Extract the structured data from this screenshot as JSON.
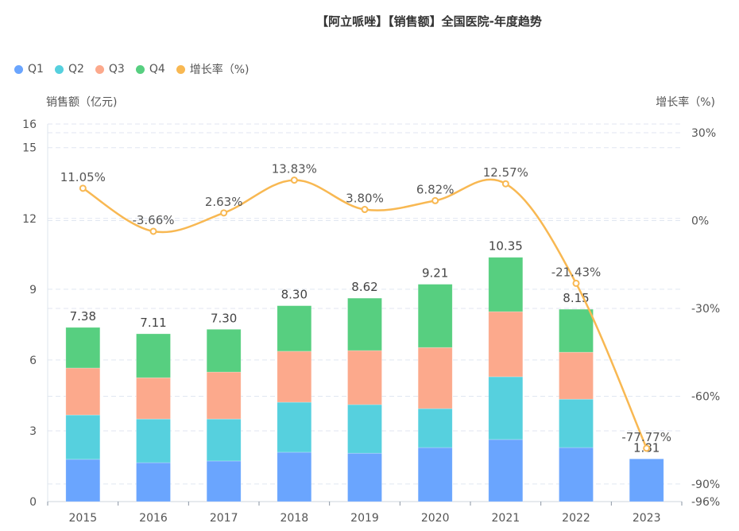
{
  "title": "【阿立哌唑】【销售额】全国医院-年度趋势",
  "legend": [
    {
      "label": "Q1",
      "color": "#6aa5fe"
    },
    {
      "label": "Q2",
      "color": "#56d0de"
    },
    {
      "label": "Q3",
      "color": "#fca98c"
    },
    {
      "label": "Q4",
      "color": "#57cf80"
    },
    {
      "label": "增长率（%)",
      "color": "#f8b852"
    }
  ],
  "chart_data": {
    "type": "bar",
    "stacked": true,
    "title": "【阿立哌唑】【销售额】全国医院-年度趋势",
    "categories": [
      "2015",
      "2016",
      "2017",
      "2018",
      "2019",
      "2020",
      "2021",
      "2022",
      "2023"
    ],
    "ylabel": "销售额（亿元)",
    "y2label": "增长率（%)",
    "ylim": [
      0,
      16
    ],
    "yticks": [
      0,
      3,
      6,
      9,
      12,
      15,
      16
    ],
    "y2lim": [
      -96,
      33
    ],
    "y2ticks": [
      {
        "value": 30,
        "label": "30%"
      },
      {
        "value": 0,
        "label": "0%"
      },
      {
        "value": -30,
        "label": "-30%"
      },
      {
        "value": -60,
        "label": "-60%"
      },
      {
        "value": -90,
        "label": "-90%"
      },
      {
        "value": -96,
        "label": "-96%"
      }
    ],
    "grid": true,
    "legend_position": "top-left",
    "series": [
      {
        "name": "Q1",
        "type": "bar",
        "color": "#6aa5fe",
        "values": [
          1.79,
          1.65,
          1.72,
          2.09,
          2.05,
          2.29,
          2.63,
          2.29,
          1.81
        ]
      },
      {
        "name": "Q2",
        "type": "bar",
        "color": "#56d0de",
        "values": [
          1.88,
          1.85,
          1.78,
          2.12,
          2.06,
          1.65,
          2.66,
          2.05,
          null
        ]
      },
      {
        "name": "Q3",
        "type": "bar",
        "color": "#fca98c",
        "values": [
          1.99,
          1.75,
          1.99,
          2.16,
          2.29,
          2.59,
          2.76,
          1.99,
          null
        ]
      },
      {
        "name": "Q4",
        "type": "bar",
        "color": "#57cf80",
        "values": [
          1.72,
          1.86,
          1.81,
          1.93,
          2.22,
          2.68,
          2.3,
          1.82,
          null
        ]
      },
      {
        "name": "增长率（%)",
        "type": "line",
        "axis": "right",
        "smooth": true,
        "color": "#f8b852",
        "values": [
          11.05,
          -3.66,
          2.63,
          13.83,
          3.8,
          6.82,
          12.57,
          -21.43,
          -77.77
        ]
      }
    ],
    "totals": [
      7.38,
      7.11,
      7.3,
      8.3,
      8.62,
      9.21,
      10.35,
      8.15,
      1.81
    ],
    "total_labels": [
      "7.38",
      "7.11",
      "7.30",
      "8.30",
      "8.62",
      "9.21",
      "10.35",
      "8.15",
      "1.81"
    ],
    "growth_labels": [
      "11.05%",
      "-3.66%",
      "2.63%",
      "13.83%",
      "3.80%",
      "6.82%",
      "12.57%",
      "-21.43%",
      "-77.77%"
    ]
  }
}
